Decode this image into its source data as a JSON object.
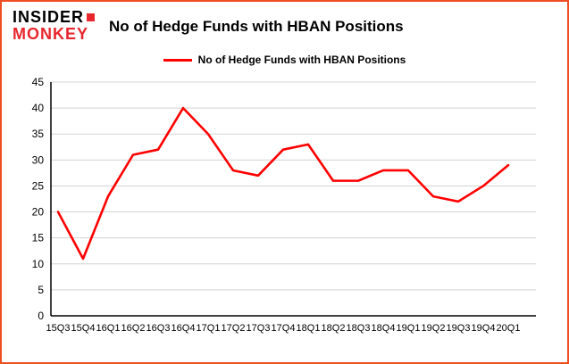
{
  "header": {
    "logo_line1": "INSIDER",
    "logo_line2": "MONKEY",
    "title": "No of Hedge Funds with HBAN Positions"
  },
  "legend": {
    "label": "No of Hedge Funds with HBAN Positions",
    "line_color": "#ff0000"
  },
  "chart_data": {
    "type": "line",
    "title": "No of Hedge Funds with HBAN Positions",
    "categories": [
      "15Q3",
      "15Q4",
      "16Q1",
      "16Q2",
      "16Q3",
      "16Q4",
      "17Q1",
      "17Q2",
      "17Q3",
      "17Q4",
      "18Q1",
      "18Q2",
      "18Q3",
      "18Q4",
      "19Q1",
      "19Q2",
      "19Q3",
      "19Q4",
      "20Q1"
    ],
    "values": [
      20,
      11,
      23,
      31,
      32,
      40,
      35,
      28,
      27,
      32,
      33,
      26,
      26,
      28,
      28,
      23,
      22,
      25,
      29
    ],
    "xlabel": "",
    "ylabel": "",
    "ylim": [
      0,
      45
    ],
    "ytick_step": 5,
    "grid": true,
    "legend_position": "top"
  },
  "colors": {
    "border": "#ef4e23",
    "line": "#ff0000",
    "grid": "#d3d3d3",
    "axis": "#000000",
    "logo_red": "#e8262d",
    "text": "#000000"
  }
}
